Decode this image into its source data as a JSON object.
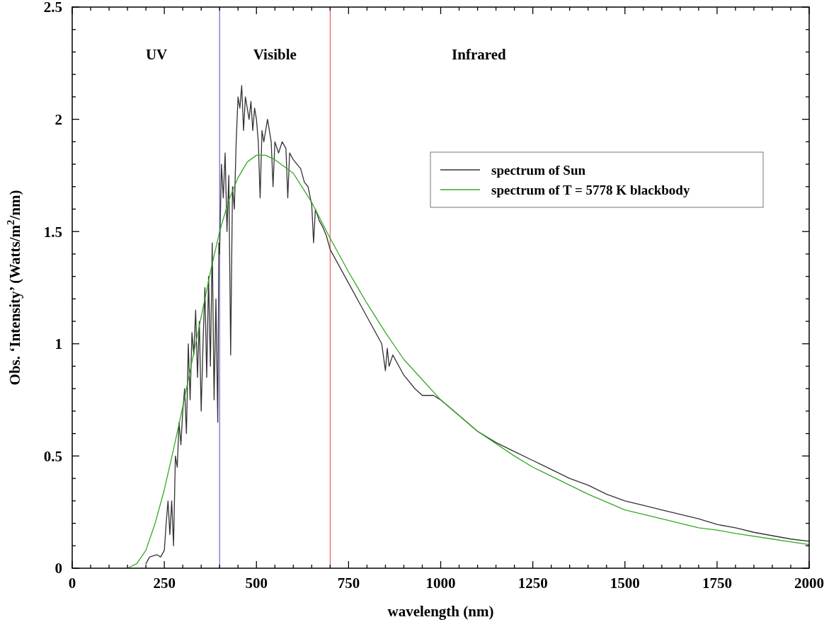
{
  "chart_data": {
    "type": "line",
    "xlabel": "wavelength (nm)",
    "ylabel": "Obs. ‘Intensity’ (Watts/m$^{2}$/nm)",
    "xlim": [
      0,
      2000
    ],
    "ylim": [
      0,
      2.5
    ],
    "xticks": [
      0,
      {
        "value": 50,
        "label": null
      },
      {
        "value": 100,
        "label": null
      },
      {
        "value": 150,
        "label": null
      },
      {
        "value": 200,
        "label": null
      },
      250,
      {
        "value": 300,
        "label": null
      },
      {
        "value": 350,
        "label": null
      },
      {
        "value": 400,
        "label": null
      },
      {
        "value": 450,
        "label": null
      },
      500,
      {
        "value": 550,
        "label": null
      },
      {
        "value": 600,
        "label": null
      },
      {
        "value": 650,
        "label": null
      },
      {
        "value": 700,
        "label": null
      },
      750,
      {
        "value": 800,
        "label": null
      },
      {
        "value": 850,
        "label": null
      },
      {
        "value": 900,
        "label": null
      },
      {
        "value": 950,
        "label": null
      },
      1000,
      {
        "value": 1050,
        "label": null
      },
      {
        "value": 1100,
        "label": null
      },
      {
        "value": 1150,
        "label": null
      },
      {
        "value": 1200,
        "label": null
      },
      1250,
      {
        "value": 1300,
        "label": null
      },
      {
        "value": 1350,
        "label": null
      },
      {
        "value": 1400,
        "label": null
      },
      {
        "value": 1450,
        "label": null
      },
      1500,
      {
        "value": 1550,
        "label": null
      },
      {
        "value": 1600,
        "label": null
      },
      {
        "value": 1650,
        "label": null
      },
      {
        "value": 1700,
        "label": null
      },
      1750,
      {
        "value": 1800,
        "label": null
      },
      {
        "value": 1850,
        "label": null
      },
      {
        "value": 1900,
        "label": null
      },
      {
        "value": 1950,
        "label": null
      },
      2000
    ],
    "yticks": [
      0,
      {
        "value": 0.1,
        "label": null
      },
      {
        "value": 0.2,
        "label": null
      },
      {
        "value": 0.3,
        "label": null
      },
      {
        "value": 0.4,
        "label": null
      },
      0.5,
      {
        "value": 0.6,
        "label": null
      },
      {
        "value": 0.7,
        "label": null
      },
      {
        "value": 0.8,
        "label": null
      },
      {
        "value": 0.9,
        "label": null
      },
      1,
      {
        "value": 1.1,
        "label": null
      },
      {
        "value": 1.2,
        "label": null
      },
      {
        "value": 1.3,
        "label": null
      },
      {
        "value": 1.4,
        "label": null
      },
      1.5,
      {
        "value": 1.6,
        "label": null
      },
      {
        "value": 1.7,
        "label": null
      },
      {
        "value": 1.8,
        "label": null
      },
      {
        "value": 1.9,
        "label": null
      },
      2,
      {
        "value": 2.1,
        "label": null
      },
      {
        "value": 2.2,
        "label": null
      },
      {
        "value": 2.3,
        "label": null
      },
      {
        "value": 2.4,
        "label": null
      },
      2.5
    ],
    "grid": false,
    "legend": "top right",
    "marker": "none",
    "line_style": "solid",
    "series": [
      {
        "name": "spectrum of Sun",
        "color": "#333333",
        "x": [
          200,
          210,
          230,
          240,
          250,
          255,
          260,
          265,
          270,
          275,
          280,
          285,
          290,
          295,
          300,
          305,
          310,
          315,
          320,
          325,
          330,
          335,
          340,
          345,
          350,
          355,
          360,
          365,
          370,
          375,
          380,
          385,
          390,
          395,
          398,
          400,
          405,
          410,
          415,
          420,
          425,
          430,
          435,
          440,
          445,
          450,
          455,
          460,
          465,
          470,
          475,
          480,
          485,
          490,
          495,
          500,
          505,
          510,
          515,
          520,
          530,
          540,
          545,
          550,
          560,
          570,
          580,
          585,
          590,
          600,
          610,
          620,
          630,
          640,
          650,
          655,
          660,
          670,
          680,
          690,
          700,
          720,
          740,
          760,
          780,
          800,
          820,
          840,
          850,
          855,
          860,
          870,
          900,
          930,
          950,
          980,
          1000,
          1050,
          1100,
          1150,
          1200,
          1250,
          1300,
          1350,
          1400,
          1450,
          1500,
          1550,
          1600,
          1650,
          1700,
          1750,
          1800,
          1850,
          1900,
          1950,
          2000
        ],
        "values": [
          0.02,
          0.05,
          0.06,
          0.05,
          0.08,
          0.2,
          0.3,
          0.15,
          0.3,
          0.1,
          0.5,
          0.45,
          0.65,
          0.55,
          0.7,
          0.8,
          0.6,
          1.0,
          0.75,
          1.05,
          0.95,
          1.15,
          0.85,
          1.1,
          0.7,
          1.0,
          1.25,
          0.85,
          1.3,
          0.9,
          1.45,
          0.75,
          1.2,
          0.65,
          1.45,
          1.4,
          1.8,
          1.65,
          1.85,
          1.5,
          1.75,
          0.95,
          1.7,
          1.6,
          1.9,
          2.1,
          2.05,
          2.15,
          1.95,
          2.1,
          2.05,
          2.0,
          2.08,
          1.95,
          2.05,
          2.0,
          1.9,
          1.65,
          1.95,
          1.9,
          2.0,
          1.9,
          1.7,
          1.9,
          1.85,
          1.9,
          1.87,
          1.65,
          1.85,
          1.82,
          1.8,
          1.78,
          1.72,
          1.7,
          1.62,
          1.45,
          1.6,
          1.55,
          1.52,
          1.48,
          1.42,
          1.36,
          1.3,
          1.24,
          1.18,
          1.12,
          1.06,
          1.0,
          0.88,
          0.98,
          0.9,
          0.95,
          0.86,
          0.8,
          0.77,
          0.77,
          0.75,
          0.68,
          0.61,
          0.56,
          0.52,
          0.48,
          0.44,
          0.4,
          0.37,
          0.33,
          0.3,
          0.28,
          0.26,
          0.24,
          0.22,
          0.195,
          0.18,
          0.16,
          0.145,
          0.13,
          0.12
        ]
      },
      {
        "name": "spectrum of T = 5778 K blackbody",
        "color": "#33aa22",
        "x": [
          150,
          175,
          200,
          225,
          250,
          275,
          300,
          325,
          350,
          375,
          400,
          425,
          450,
          475,
          500,
          525,
          550,
          600,
          650,
          700,
          750,
          800,
          850,
          900,
          950,
          1000,
          1100,
          1200,
          1250,
          1300,
          1400,
          1500,
          1600,
          1700,
          1750,
          1800,
          1900,
          2000
        ],
        "values": [
          0,
          0.02,
          0.08,
          0.2,
          0.35,
          0.53,
          0.72,
          0.92,
          1.12,
          1.32,
          1.5,
          1.64,
          1.74,
          1.81,
          1.84,
          1.84,
          1.82,
          1.76,
          1.63,
          1.47,
          1.32,
          1.18,
          1.05,
          0.93,
          0.84,
          0.75,
          0.61,
          0.5,
          0.45,
          0.41,
          0.33,
          0.26,
          0.22,
          0.18,
          0.17,
          0.155,
          0.13,
          0.105
        ]
      }
    ],
    "ref_lines": [
      {
        "axis": "x",
        "value": 400,
        "color": "#4444cc"
      },
      {
        "axis": "x",
        "value": 700,
        "color": "#dd4444"
      }
    ],
    "annotations": [
      "UV",
      "Visible",
      "Infrared"
    ]
  }
}
